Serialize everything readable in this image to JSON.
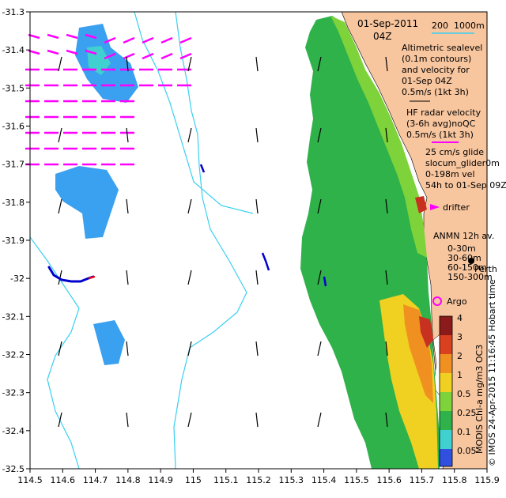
{
  "map": {
    "title_date": "01-Sep-2011",
    "title_time": "04Z",
    "bathy_label_200": "200",
    "bathy_label_1000": "1000m",
    "x_ticks": [
      "114.5",
      "114.6",
      "114.7",
      "114.8",
      "114.9",
      "115",
      "115.1",
      "115.2",
      "115.3",
      "115.4",
      "115.5",
      "115.6",
      "115.7",
      "115.8",
      "115.9"
    ],
    "y_ticks": [
      "-31.3",
      "-31.4",
      "-31.5",
      "-31.6",
      "-31.7",
      "-31.8",
      "-31.9",
      "-32",
      "-32.1",
      "-32.2",
      "-32.3",
      "-32.4",
      "-32.5"
    ],
    "legend": {
      "altimetric": [
        "Altimetric sealevel",
        "(0.1m contours)",
        "and velocity for",
        "01-Sep 04Z"
      ],
      "altimetric_scale": "0.5m/s (1kt 3h)",
      "hf_radar": [
        "HF radar velocity",
        "(3-6h avg)noQC"
      ],
      "hf_scale": "0.5m/s (1kt 3h)",
      "glider_25": "25 cm/s glide",
      "slocum": "slocum_glider0m",
      "glider_vel": "0-198m vel",
      "glider_time": "54h to 01-Sep 09Z",
      "drifter": "drifter",
      "anmn": "ANMN 12h av.",
      "anmn_depths": [
        "0-30m",
        "30-60m",
        "60-150m",
        "150-300m"
      ],
      "perth": "Perth",
      "argo": "Argo"
    },
    "colorbar": {
      "ticks": [
        "4",
        "3",
        "2",
        "1",
        "0.5",
        "0.25",
        "0.1",
        "0.05"
      ],
      "label": "MODIS Chl-a mg/m3 OC3",
      "credit": "© IMOS 24-Apr-2015 11:16:45 Hobart time"
    },
    "colors": {
      "land": "#f7c59e",
      "chl_green": "#2fb24a",
      "chl_light_green": "#7ed23a",
      "chl_yellow": "#f0d020",
      "chl_orange": "#f09020",
      "chl_red": "#c83020",
      "chl_blue": "#3aa0f0",
      "chl_cyan": "#40d0d0",
      "bathy_contour": "#39d0f0",
      "hf_radar_arrow": "#ff00ff",
      "altimetry_arrow": "#000000",
      "glider_track": "#0000cc",
      "argo_marker": "#ff00ff"
    },
    "icons": [
      "north-arrow-icon",
      "drifter-arrow-icon",
      "argo-circle-icon"
    ]
  }
}
